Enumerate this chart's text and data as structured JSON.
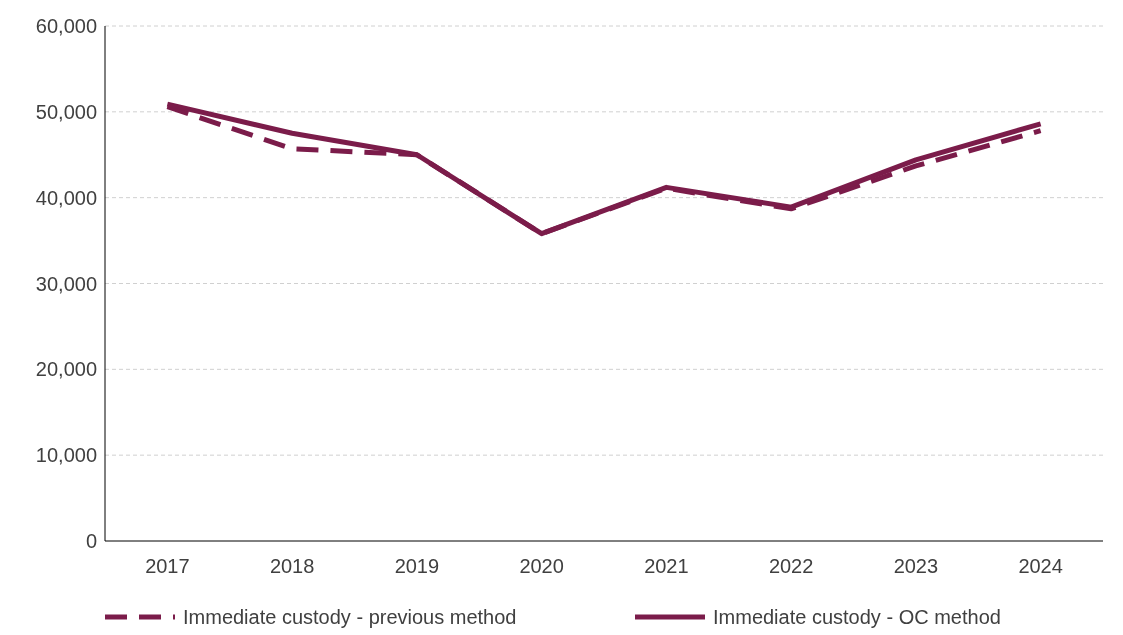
{
  "chart_data": {
    "type": "line",
    "categories": [
      "2017",
      "2018",
      "2019",
      "2020",
      "2021",
      "2022",
      "2023",
      "2024"
    ],
    "series": [
      {
        "name": "Immediate custody - previous method",
        "color": "#7b1c4a",
        "line_style": "dashed",
        "values": [
          50600,
          45700,
          45000,
          35800,
          41100,
          38700,
          43700,
          47800
        ]
      },
      {
        "name": "Immediate custody - OC method",
        "color": "#7b1c4a",
        "line_style": "solid",
        "values": [
          50900,
          47500,
          45000,
          35800,
          41200,
          38900,
          44400,
          48600
        ]
      }
    ],
    "ylim": [
      0,
      60000
    ],
    "yticks": [
      {
        "value": 0,
        "label": "0"
      },
      {
        "value": 10000,
        "label": "10,000"
      },
      {
        "value": 20000,
        "label": "20,000"
      },
      {
        "value": 30000,
        "label": "30,000"
      },
      {
        "value": 40000,
        "label": "40,000"
      },
      {
        "value": 50000,
        "label": "50,000"
      },
      {
        "value": 60000,
        "label": "60,000"
      }
    ],
    "grid": "y",
    "legend": "bottom"
  }
}
